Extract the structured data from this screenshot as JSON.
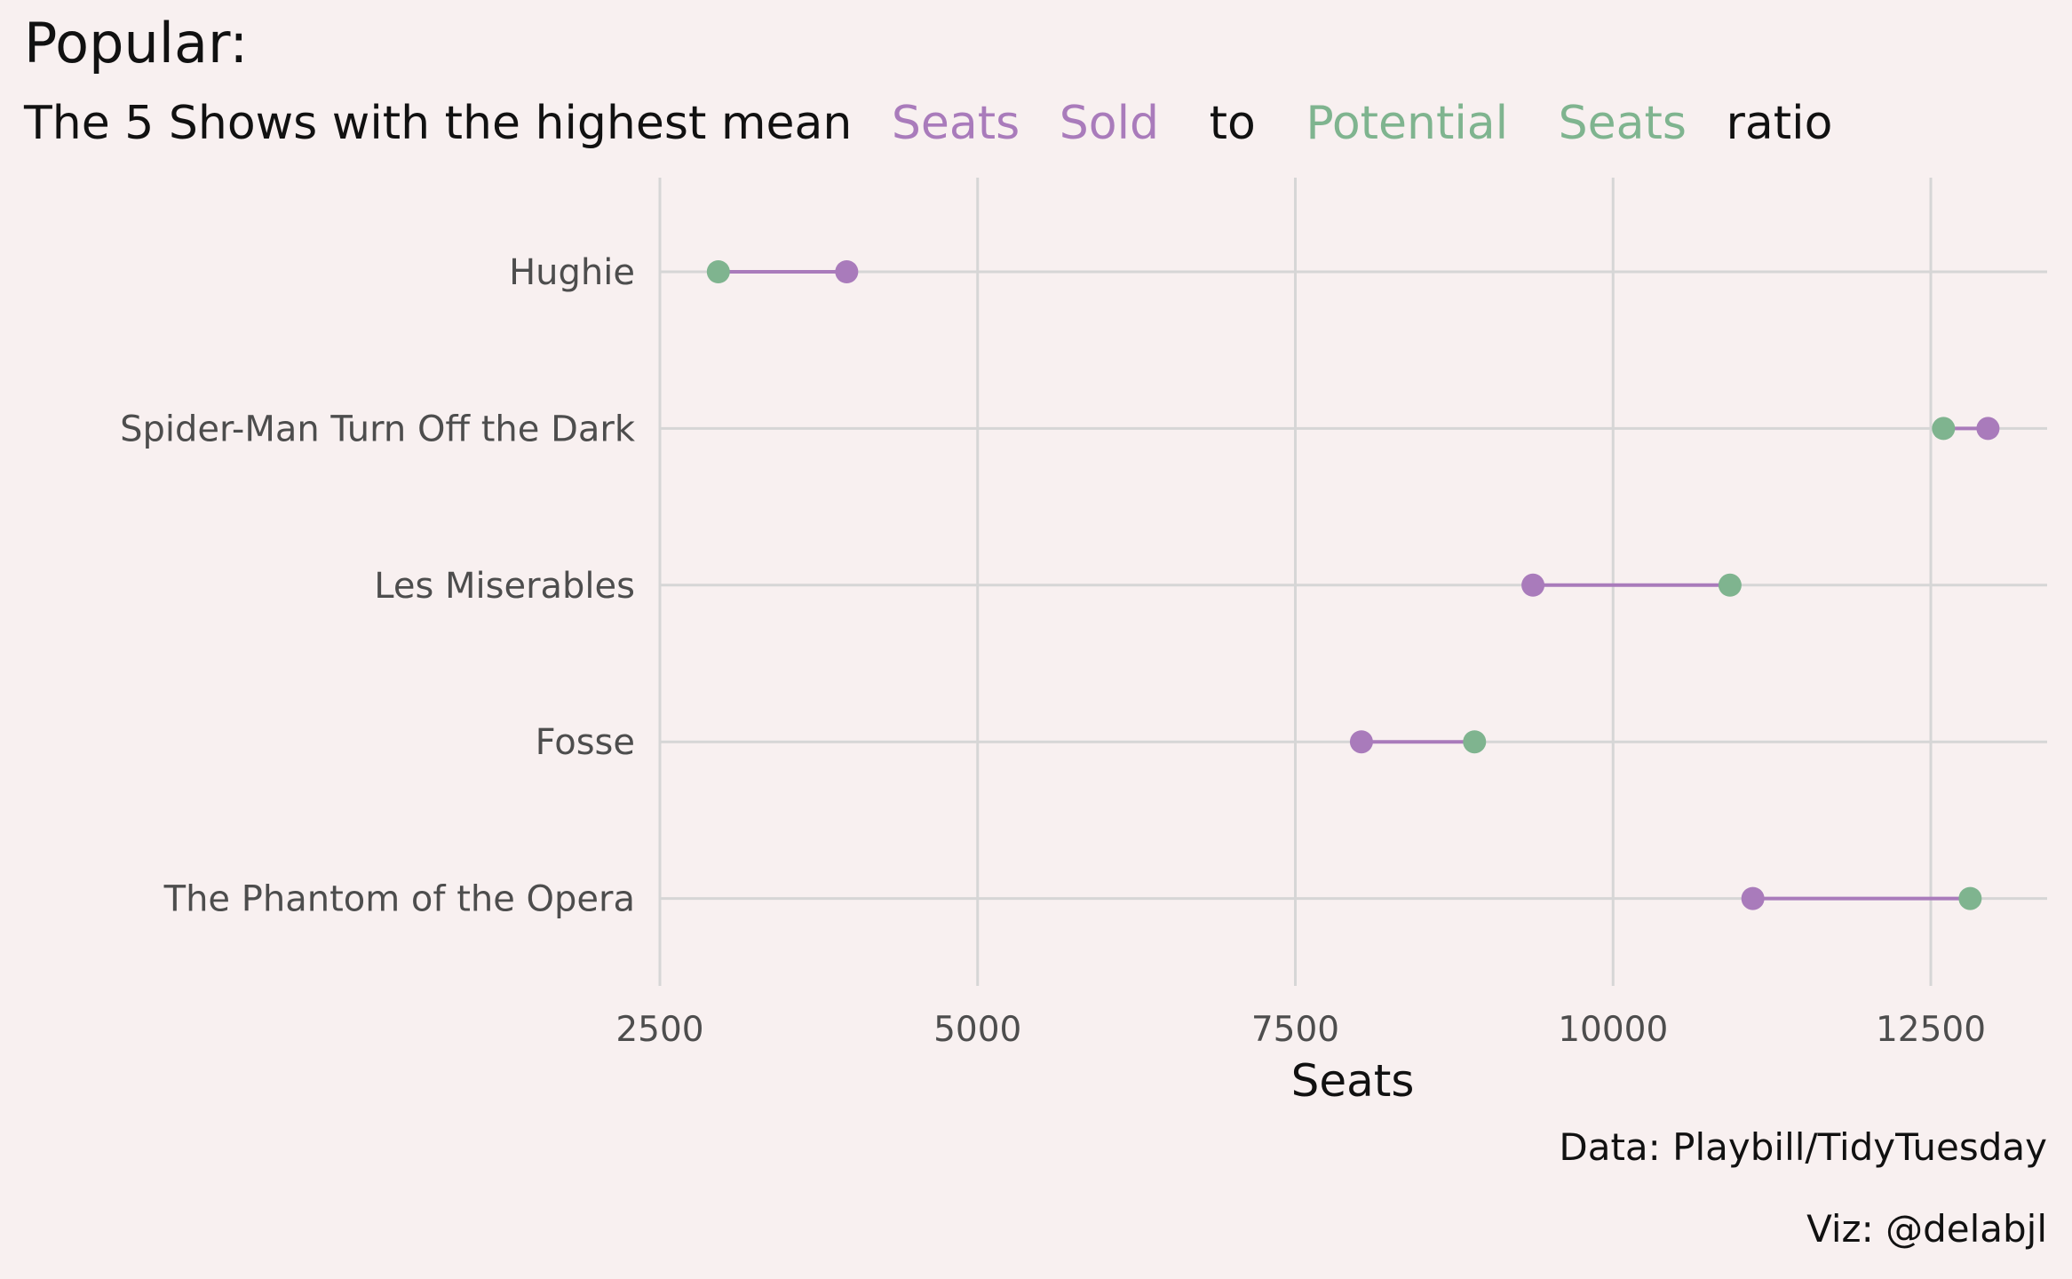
{
  "title": "Popular:",
  "subtitle": {
    "parts": [
      {
        "text": "The 5 Shows with the highest mean",
        "role": "plain"
      },
      {
        "text": "Seats",
        "role": "sold"
      },
      {
        "text": "Sold",
        "role": "sold"
      },
      {
        "text": "to",
        "role": "plain"
      },
      {
        "text": "Potential",
        "role": "potential"
      },
      {
        "text": "Seats",
        "role": "potential"
      },
      {
        "text": "ratio",
        "role": "plain"
      }
    ]
  },
  "caption": {
    "data_source": "Data: Playbill/TidyTuesday",
    "viz_credit": "Viz: @delabjl"
  },
  "colors": {
    "background": "#f8f0f0",
    "sold": "#a97bbb",
    "potential": "#7fb48f",
    "grid": "#d6d6d6",
    "label": "#4d4d4d",
    "text": "#111111"
  },
  "chart_data": {
    "type": "dumbbell",
    "xlabel": "Seats",
    "ylabel": "",
    "xlim": [
      2500,
      13500
    ],
    "xticks": [
      2500,
      5000,
      7500,
      10000,
      12500
    ],
    "xtick_labels": [
      "2500",
      "5000",
      "7500",
      "10000",
      "12500"
    ],
    "grid": true,
    "categories": [
      "Hughie",
      "Spider-Man Turn Off the Dark",
      "Les Miserables",
      "Fosse",
      "The Phantom of the Opera"
    ],
    "series": [
      {
        "name": "Seats Sold",
        "values": [
          3970,
          12950,
          9370,
          8020,
          11100
        ]
      },
      {
        "name": "Potential Seats",
        "values": [
          2960,
          12600,
          10920,
          8910,
          12810
        ]
      }
    ]
  }
}
